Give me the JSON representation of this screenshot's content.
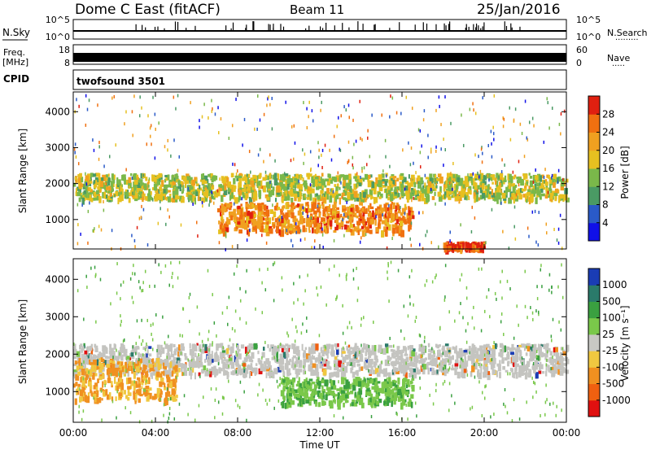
{
  "header": {
    "station": "Dome C East (fitACF)",
    "beam": "Beam 11",
    "date": "25/Jan/2016"
  },
  "left_labels": {
    "nsky": "N.Sky",
    "freq": "Freq.",
    "freq_unit": "[MHz]",
    "cpid": "CPID",
    "nsky_top": "10^5",
    "nsky_bottom": "10^0",
    "freq_top": "18",
    "freq_bottom": "8"
  },
  "right_labels": {
    "nsearch": "N.Search",
    "nave": "Nave",
    "nsearch_top": "10^5",
    "nsearch_bottom": "10^0",
    "nave_top": "60",
    "nave_bottom": "0"
  },
  "cpid_text": "twofsound 3501",
  "axes": {
    "ylabel": "Slant Range [km]",
    "xlabel": "Time UT",
    "x_ticks": [
      "00:00",
      "04:00",
      "08:00",
      "12:00",
      "16:00",
      "20:00",
      "00:00"
    ],
    "y_ticks": [
      "1000",
      "2000",
      "3000",
      "4000"
    ]
  },
  "power_colorbar": {
    "label": "Power [dB]",
    "ticks": [
      "4",
      "8",
      "12",
      "16",
      "20",
      "24",
      "28"
    ],
    "colors": [
      "#1010e8",
      "#2a5ac8",
      "#4a9a64",
      "#7ab84a",
      "#e6c020",
      "#f0a020",
      "#f07010",
      "#e02010"
    ]
  },
  "velocity_colorbar": {
    "label": "Velocity [m s⁻¹]",
    "ticks": [
      "1000",
      "500",
      "100",
      "25",
      "-25",
      "-100",
      "-500",
      "-1000"
    ],
    "colors": [
      "#1a3cb4",
      "#2a7a6a",
      "#3aa040",
      "#7ac84a",
      "#c8c8c4",
      "#f0c840",
      "#f09020",
      "#f06010",
      "#e01010"
    ]
  },
  "chart_data": [
    {
      "type": "heatmap",
      "title": "Power",
      "xlabel": "Time UT",
      "ylabel": "Slant Range [km]",
      "xlim": [
        0,
        24
      ],
      "ylim": [
        180,
        4550
      ],
      "colorbar_label": "Power [dB]",
      "colorbar_range": [
        0,
        30
      ],
      "echo_regions": [
        {
          "t_start": 0,
          "t_end": 24,
          "range_start": 1600,
          "range_end": 2300,
          "value": 16
        },
        {
          "t_start": 7,
          "t_end": 16.5,
          "range_start": 700,
          "range_end": 1500,
          "value": 24
        },
        {
          "t_start": 18,
          "t_end": 20,
          "range_start": 200,
          "range_end": 400,
          "value": 28
        }
      ]
    },
    {
      "type": "heatmap",
      "title": "Velocity",
      "xlabel": "Time UT",
      "ylabel": "Slant Range [km]",
      "xlim": [
        0,
        24
      ],
      "ylim": [
        180,
        4550
      ],
      "colorbar_label": "Velocity [m s⁻¹]",
      "colorbar_range": [
        -1000,
        1000
      ],
      "echo_regions": [
        {
          "t_start": 0,
          "t_end": 24,
          "range_start": 1500,
          "range_end": 2300,
          "value": 0
        },
        {
          "t_start": 10,
          "t_end": 16.5,
          "range_start": 700,
          "range_end": 1400,
          "value": 100
        },
        {
          "t_start": 0,
          "t_end": 5,
          "range_start": 800,
          "range_end": 1900,
          "value": -100
        }
      ]
    }
  ]
}
